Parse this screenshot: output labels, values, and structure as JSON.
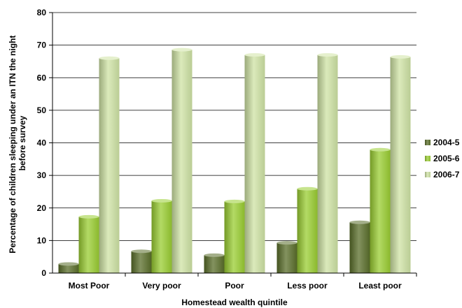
{
  "chart_data": {
    "type": "bar",
    "categories": [
      "Most Poor",
      "Very poor",
      "Poor",
      "Less poor",
      "Least poor"
    ],
    "series": [
      {
        "name": "2004-5",
        "values": [
          2.8,
          6.7,
          5.5,
          9.3,
          15.6
        ],
        "color": "#5a6e2a"
      },
      {
        "name": "2005-6",
        "values": [
          17.3,
          22.2,
          22.0,
          25.9,
          37.9
        ],
        "color": "#9acd32"
      },
      {
        "name": "2006-7",
        "values": [
          66.0,
          68.6,
          67.0,
          67.0,
          66.4
        ],
        "color": "#cfe3a4"
      }
    ],
    "ylabel_line1": "Percentage of children sleeping under an ITN  the night",
    "ylabel_line2": "before survey",
    "xlabel": "Homestead wealth quintile",
    "ylim": [
      0,
      80
    ],
    "yticks": [
      0,
      10,
      20,
      30,
      40,
      50,
      60,
      70,
      80
    ],
    "grid": true,
    "legend_position": "right"
  }
}
